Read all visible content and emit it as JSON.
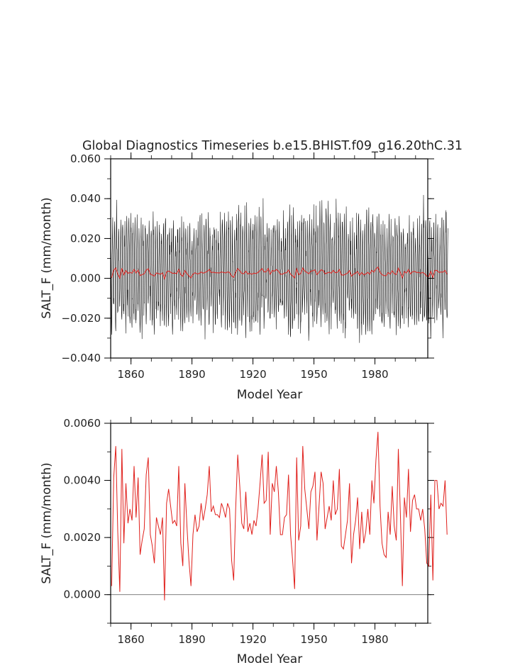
{
  "chart_data": [
    {
      "type": "line",
      "title": "Global Diagnostics Timeseries b.e15.BHIST.f09_g16.20thC.31",
      "xlabel": "Model Year",
      "ylabel": "SALT_F (mm/month)",
      "xlim": [
        1850,
        2006
      ],
      "ylim": [
        -0.04,
        0.06
      ],
      "xticks": [
        "1860",
        "1890",
        "1920",
        "1950",
        "1980"
      ],
      "yticks": [
        "-0.040",
        "-0.020",
        "0.000",
        "0.020",
        "0.040",
        "0.060"
      ],
      "series": [
        {
          "color": "#000000",
          "resolution": "monthly",
          "annual_mean": "series_ref:annual",
          "seasonal_amplitude": 0.022
        },
        {
          "color": "#e0201c",
          "resolution": "annual",
          "values": "series_ref:annual"
        }
      ]
    },
    {
      "type": "line",
      "title": "",
      "xlabel": "Model Year",
      "ylabel": "SALT_F (mm/month)",
      "xlim": [
        1850,
        2006
      ],
      "ylim": [
        -0.001,
        0.006
      ],
      "xticks": [
        "1860",
        "1890",
        "1920",
        "1950",
        "1980"
      ],
      "yticks": [
        "0.0000",
        "0.0020",
        "0.0040",
        "0.0060"
      ],
      "zero_line": true,
      "series": [
        {
          "color": "#e0201c",
          "resolution": "annual",
          "x_start": 1850,
          "values": [
            0.0003,
            0.0041,
            0.0052,
            0.0022,
            0.0001,
            0.0051,
            0.0018,
            0.0039,
            0.0025,
            0.003,
            0.0026,
            0.0045,
            0.0027,
            0.0041,
            0.0014,
            0.0019,
            0.0023,
            0.0042,
            0.0048,
            0.0021,
            0.0017,
            0.0011,
            0.0027,
            0.0024,
            0.0021,
            0.0027,
            -0.0002,
            0.0032,
            0.0037,
            0.0031,
            0.0025,
            0.0026,
            0.0024,
            0.0045,
            0.0018,
            0.001,
            0.0039,
            0.0024,
            0.0012,
            0.0003,
            0.0021,
            0.0028,
            0.0022,
            0.0024,
            0.0032,
            0.0026,
            0.003,
            0.0035,
            0.0045,
            0.0029,
            0.0031,
            0.0028,
            0.0028,
            0.0027,
            0.0032,
            0.003,
            0.0027,
            0.0032,
            0.003,
            0.0012,
            0.0005,
            0.003,
            0.0049,
            0.0038,
            0.0025,
            0.0023,
            0.0036,
            0.0022,
            0.0025,
            0.0021,
            0.0026,
            0.0024,
            0.003,
            0.0039,
            0.0049,
            0.0032,
            0.0033,
            0.005,
            0.0021,
            0.0039,
            0.0036,
            0.0045,
            0.0036,
            0.0021,
            0.0021,
            0.0027,
            0.0028,
            0.0042,
            0.0021,
            0.0012,
            0.0002,
            0.0048,
            0.0019,
            0.0024,
            0.0052,
            0.0037,
            0.003,
            0.0023,
            0.0036,
            0.0038,
            0.0043,
            0.0019,
            0.0031,
            0.0043,
            0.0039,
            0.0023,
            0.0027,
            0.0031,
            0.0026,
            0.004,
            0.0028,
            0.003,
            0.0044,
            0.0017,
            0.0016,
            0.0021,
            0.0026,
            0.0039,
            0.0011,
            0.0021,
            0.0026,
            0.0034,
            0.0016,
            0.0029,
            0.0018,
            0.0022,
            0.003,
            0.0021,
            0.004,
            0.0032,
            0.0047,
            0.0057,
            0.0031,
            0.0018,
            0.0014,
            0.0013,
            0.0029,
            0.0021,
            0.0038,
            0.0024,
            0.0019,
            0.0051,
            0.0029,
            0.0003,
            0.0034,
            0.0027,
            0.0044,
            0.0022,
            0.0033,
            0.0035,
            0.003,
            0.003,
            0.0026,
            0.003,
            0.0023,
            0.0011,
            0.001,
            0.0035,
            0.0005,
            0.004,
            0.004,
            0.003,
            0.0032,
            0.0031,
            0.004,
            0.0021
          ]
        }
      ]
    }
  ]
}
